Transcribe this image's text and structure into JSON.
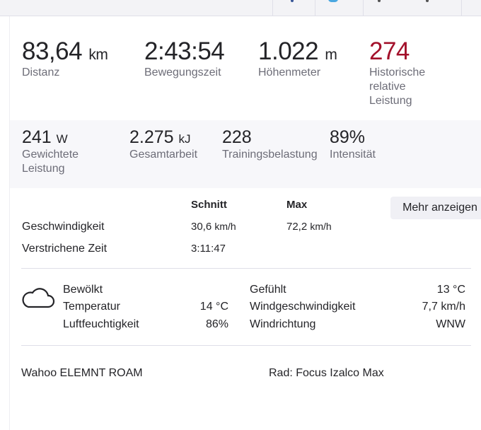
{
  "top_stats": [
    {
      "value": "83,64",
      "unit": "km",
      "label": "Distanz"
    },
    {
      "value": "2:43:54",
      "unit": "",
      "label": "Bewegungszeit"
    },
    {
      "value": "1.022",
      "unit": "m",
      "label": "Höhenmeter"
    },
    {
      "value": "274",
      "unit": "",
      "label_lines": [
        "Historische",
        "relative",
        "Leistung"
      ],
      "color": "#a3112b"
    }
  ],
  "secondary_stats": [
    {
      "value": "241",
      "unit": "W",
      "label_lines": [
        "Gewichtete",
        "Leistung"
      ]
    },
    {
      "value": "2.275",
      "unit": "kJ",
      "label": "Gesamtarbeit"
    },
    {
      "value": "228",
      "unit": "",
      "label": "Trainingsbelastung"
    },
    {
      "value": "89%",
      "unit": "",
      "label": "Intensität"
    }
  ],
  "table": {
    "headers": [
      "Schnitt",
      "Max"
    ],
    "rows": [
      {
        "label": "Geschwindigkeit",
        "avg": "30,6",
        "avg_unit": "km/h",
        "max": "72,2",
        "max_unit": "km/h"
      },
      {
        "label": "Verstrichene Zeit",
        "avg": "3:11:47",
        "max": ""
      }
    ],
    "more_button": "Mehr anzeigen"
  },
  "weather": {
    "icon": "cloud-icon",
    "left": [
      {
        "label": "Bewölkt",
        "value": ""
      },
      {
        "label": "Temperatur",
        "value": "14 °C"
      },
      {
        "label": "Luftfeuchtigkeit",
        "value": "86%"
      }
    ],
    "right": [
      {
        "label": "Gefühlt",
        "value": "13 °C"
      },
      {
        "label": "Windgeschwindigkeit",
        "value": "7,7 km/h"
      },
      {
        "label": "Windrichtung",
        "value": "WNW"
      }
    ]
  },
  "device": "Wahoo ELEMNT ROAM",
  "bike": "Rad: Focus Izalco Max"
}
